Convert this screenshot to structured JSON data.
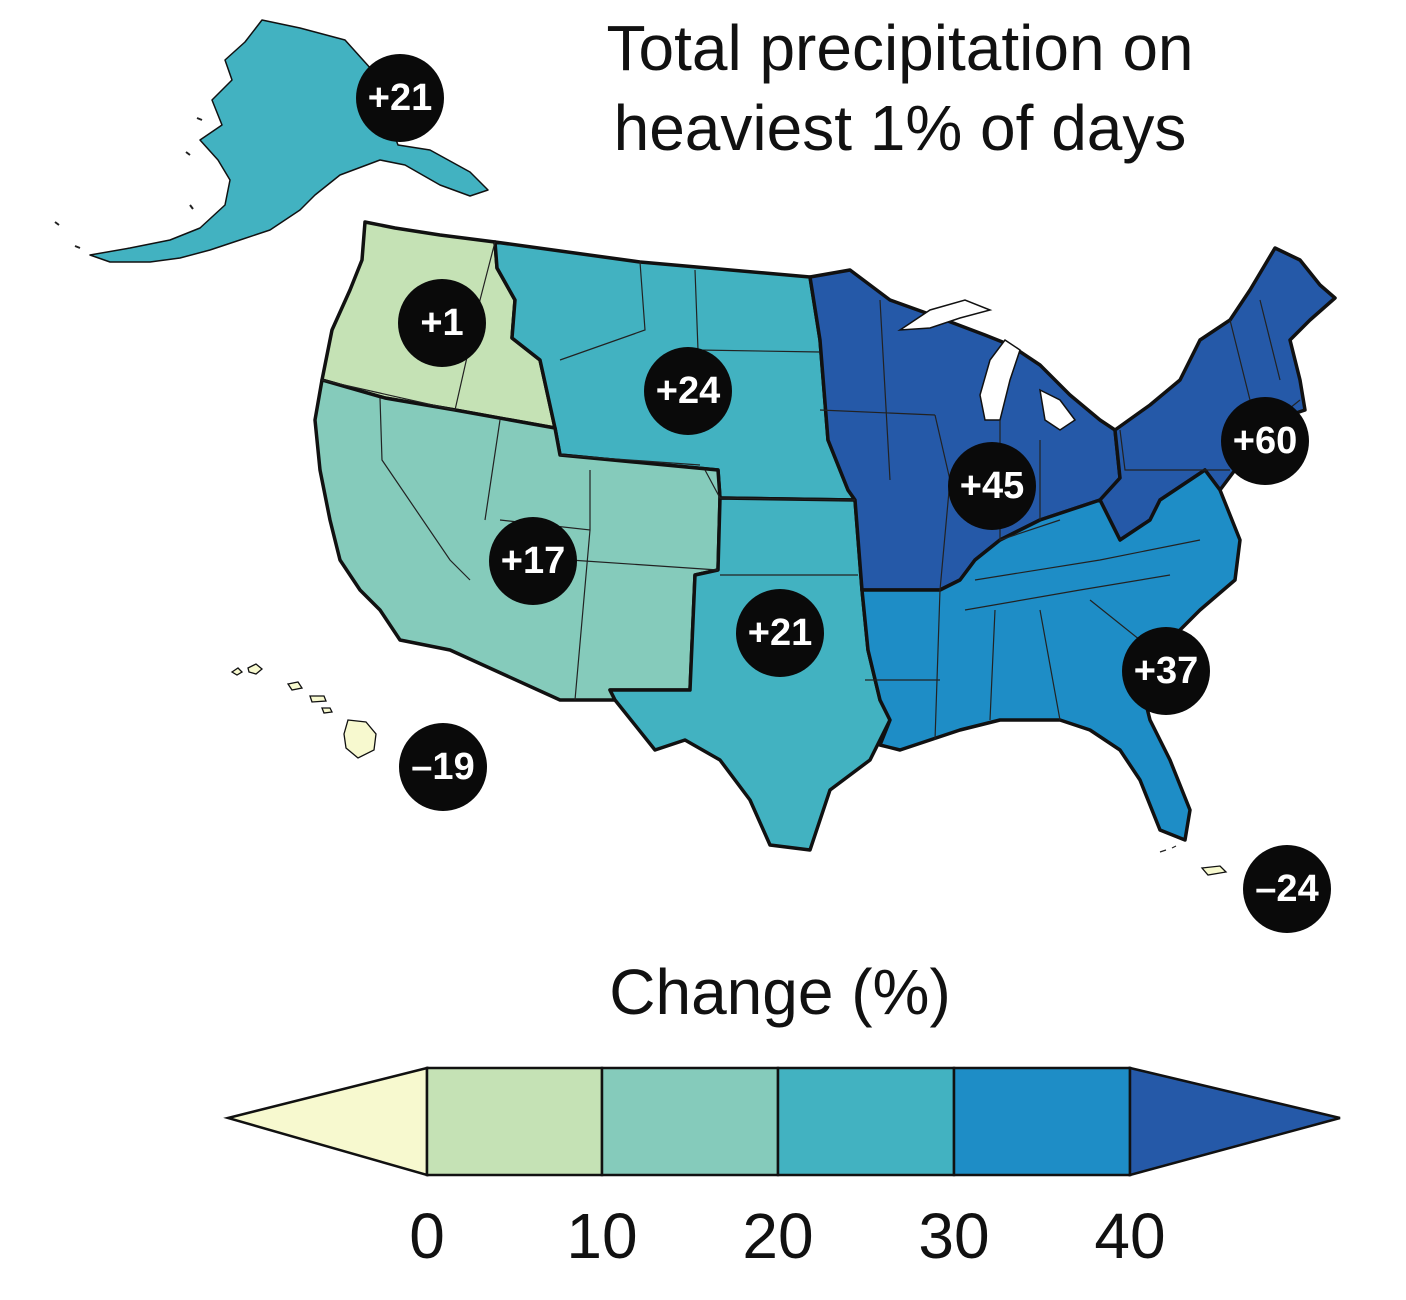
{
  "title_line1": "Total precipitation on",
  "title_line2": "heaviest 1% of days",
  "legend": {
    "title": "Change (%)",
    "ticks": [
      "0",
      "10",
      "20",
      "30",
      "40"
    ],
    "colors": {
      "below_0": "#f7f9cf",
      "0_10": "#c5e2b5",
      "10_20": "#85cbbb",
      "20_30": "#42b2c1",
      "30_40": "#1e8dc6",
      "above_40": "#2559a8"
    }
  },
  "regions": [
    {
      "id": "alaska",
      "value": "+21",
      "color": "#42b2c1"
    },
    {
      "id": "northwest",
      "value": "+1",
      "color": "#c5e2b5"
    },
    {
      "id": "great-plains-north",
      "value": "+24",
      "color": "#42b2c1"
    },
    {
      "id": "southwest",
      "value": "+17",
      "color": "#85cbbb"
    },
    {
      "id": "great-plains-south",
      "value": "+21",
      "color": "#42b2c1"
    },
    {
      "id": "midwest",
      "value": "+45",
      "color": "#2559a8"
    },
    {
      "id": "northeast",
      "value": "+60",
      "color": "#2559a8"
    },
    {
      "id": "southeast",
      "value": "+37",
      "color": "#1e8dc6"
    },
    {
      "id": "hawaii",
      "value": "–19",
      "color": "#f7f9cf"
    },
    {
      "id": "puerto-rico",
      "value": "–24",
      "color": "#f7f9cf"
    }
  ]
}
